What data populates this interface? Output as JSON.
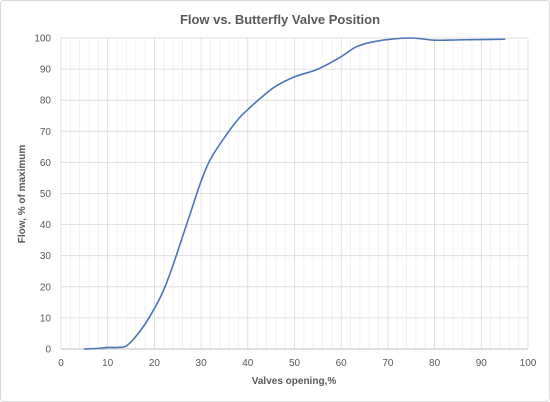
{
  "chart_data": {
    "type": "line",
    "title": "Flow vs. Butterfly Valve Position",
    "xlabel": "Valves opening,%",
    "ylabel": "Flow, % of maximum",
    "xlim": [
      0,
      100
    ],
    "ylim": [
      0,
      100
    ],
    "x_ticks": [
      0,
      10,
      20,
      30,
      40,
      50,
      60,
      70,
      80,
      90,
      100
    ],
    "y_ticks": [
      0,
      10,
      20,
      30,
      40,
      50,
      60,
      70,
      80,
      90,
      100
    ],
    "x_minor_step": 2,
    "grid": {
      "major": true,
      "minor_vertical": true
    },
    "legend": "none",
    "line_color": "#4a76b6",
    "series": [
      {
        "x": [
          5,
          8,
          10,
          12,
          14,
          16,
          18,
          20,
          22,
          24,
          26,
          28,
          30,
          32,
          35,
          38,
          40,
          43,
          46,
          50,
          55,
          60,
          63,
          66,
          70,
          75,
          80,
          85,
          90,
          95
        ],
        "y": [
          0,
          0.2,
          0.5,
          0.5,
          1,
          4,
          8,
          13,
          19,
          27,
          36,
          45,
          54,
          61,
          68,
          74,
          77,
          81,
          84.5,
          87.5,
          90,
          94,
          97,
          98.5,
          99.5,
          100,
          99.3,
          99.4,
          99.5,
          99.6
        ]
      }
    ]
  }
}
